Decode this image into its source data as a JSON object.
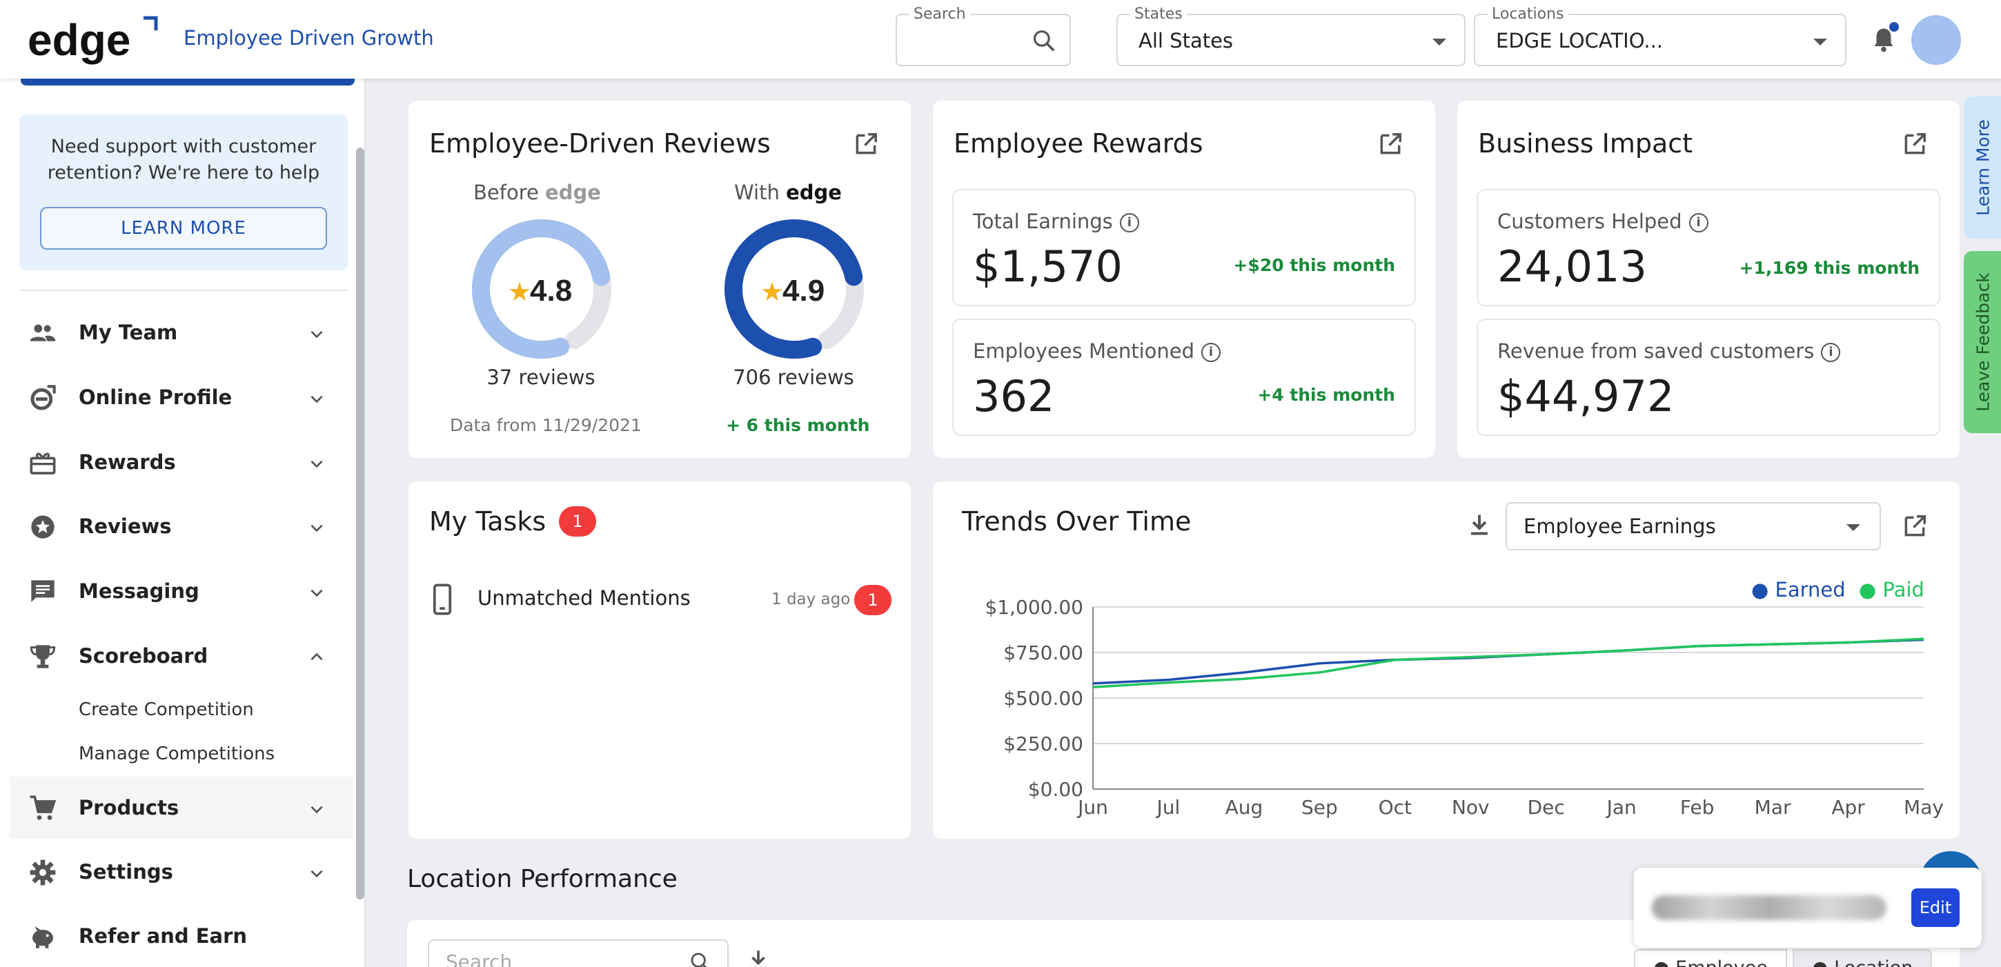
{
  "header": {
    "logo_text": "edge",
    "tagline": "Employee Driven Growth",
    "search": {
      "label": "Search",
      "value": ""
    },
    "states": {
      "label": "States",
      "value": "All States"
    },
    "locations": {
      "label": "Locations",
      "value": "EDGE LOCATIO..."
    }
  },
  "sidebar": {
    "support_text": "Need support with customer retention? We're here to help",
    "learn_more": "LEARN MORE",
    "items": [
      {
        "label": "My Team",
        "icon": "team-icon"
      },
      {
        "label": "Online Profile",
        "icon": "edge-profile-icon"
      },
      {
        "label": "Rewards",
        "icon": "gift-icon"
      },
      {
        "label": "Reviews",
        "icon": "star-badge-icon"
      },
      {
        "label": "Messaging",
        "icon": "message-icon"
      },
      {
        "label": "Scoreboard",
        "icon": "trophy-icon"
      },
      {
        "label": "Products",
        "icon": "cart-icon"
      },
      {
        "label": "Settings",
        "icon": "gear-icon"
      },
      {
        "label": "Refer and Earn",
        "icon": "piggy-bank-icon"
      }
    ],
    "scoreboard_sub": [
      "Create Competition",
      "Manage Competitions"
    ]
  },
  "reviews": {
    "title": "Employee-Driven Reviews",
    "before_label": "Before",
    "with_label": "With",
    "brand": "edge",
    "before_rating": "4.8",
    "with_rating": "4.9",
    "before_count": "37 reviews",
    "with_count": "706 reviews",
    "data_from": "Data from 11/29/2021",
    "this_month": "+ 6 this month",
    "before_fill": 0.8,
    "with_fill": 0.8
  },
  "rewards": {
    "title": "Employee Rewards",
    "total_label": "Total Earnings",
    "total_value": "$1,570",
    "total_delta": "+$20 this month",
    "mentioned_label": "Employees Mentioned",
    "mentioned_value": "362",
    "mentioned_delta": "+4 this month"
  },
  "impact": {
    "title": "Business Impact",
    "helped_label": "Customers Helped",
    "helped_value": "24,013",
    "helped_delta": "+1,169 this month",
    "revenue_label": "Revenue from saved customers",
    "revenue_value": "$44,972"
  },
  "tasks": {
    "title": "My Tasks",
    "count": "1",
    "items": [
      {
        "label": "Unmatched Mentions",
        "time": "1 day ago",
        "count": "1"
      }
    ]
  },
  "trends": {
    "title": "Trends Over Time",
    "metric": "Employee Earnings"
  },
  "chart_data": {
    "type": "line",
    "categories": [
      "Jun",
      "Jul",
      "Aug",
      "Sep",
      "Oct",
      "Nov",
      "Dec",
      "Jan",
      "Feb",
      "Mar",
      "Apr",
      "May"
    ],
    "y_ticks": [
      "$1,000.00",
      "$750.00",
      "$500.00",
      "$250.00",
      "$0.00"
    ],
    "ylim": [
      0,
      1000
    ],
    "series": [
      {
        "name": "Earned",
        "color": "#1d4fae",
        "values": [
          580,
          600,
          640,
          690,
          710,
          720,
          740,
          760,
          785,
          795,
          805,
          820
        ]
      },
      {
        "name": "Paid",
        "color": "#22c55e",
        "values": [
          560,
          585,
          605,
          640,
          710,
          725,
          740,
          760,
          785,
          795,
          805,
          825
        ]
      }
    ],
    "grid": true,
    "legend": "top-right"
  },
  "location_performance": {
    "title": "Location Performance",
    "search_placeholder": "Search",
    "tab_employee": "Employee",
    "tab_location": "Location"
  },
  "side_tabs": {
    "learn_more": "Learn More",
    "feedback": "Leave Feedback"
  },
  "popup": {
    "edit": "Edit"
  },
  "colors": {
    "brand": "#1d4fae",
    "accent_green": "#1a8a3a",
    "badge": "#f23b3b"
  }
}
